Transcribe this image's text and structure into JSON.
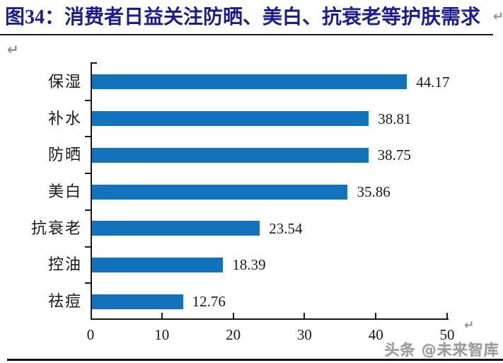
{
  "header": {
    "title": "图34：消费者日益关注防晒、美白、抗衰老等护肤需求"
  },
  "marks": {
    "return_glyph": "↵"
  },
  "footer": {
    "watermark": "头条 @未来智库"
  },
  "colors": {
    "bar": "#1272BC",
    "title": "#1D1D92",
    "axis": "#1A1A1A",
    "text": "#1A1A1A",
    "return_mark": "#909090",
    "watermark": "#9B9B9B"
  },
  "chart_data": {
    "type": "bar",
    "orientation": "horizontal",
    "title": "消费者日益关注防晒、美白、抗衰老等护肤需求",
    "categories": [
      "保湿",
      "补水",
      "防晒",
      "美白",
      "抗衰老",
      "控油",
      "祛痘"
    ],
    "values": [
      44.17,
      38.81,
      38.75,
      35.86,
      23.54,
      18.39,
      12.76
    ],
    "value_labels": [
      "44.17",
      "38.81",
      "38.75",
      "35.86",
      "23.54",
      "18.39",
      "12.76"
    ],
    "x_ticks": [
      0,
      10,
      20,
      30,
      40,
      50
    ],
    "xlim": [
      0,
      50
    ],
    "grid": false,
    "legend": "none",
    "bar_color": "#1272BC",
    "value_labels_shown": true
  }
}
